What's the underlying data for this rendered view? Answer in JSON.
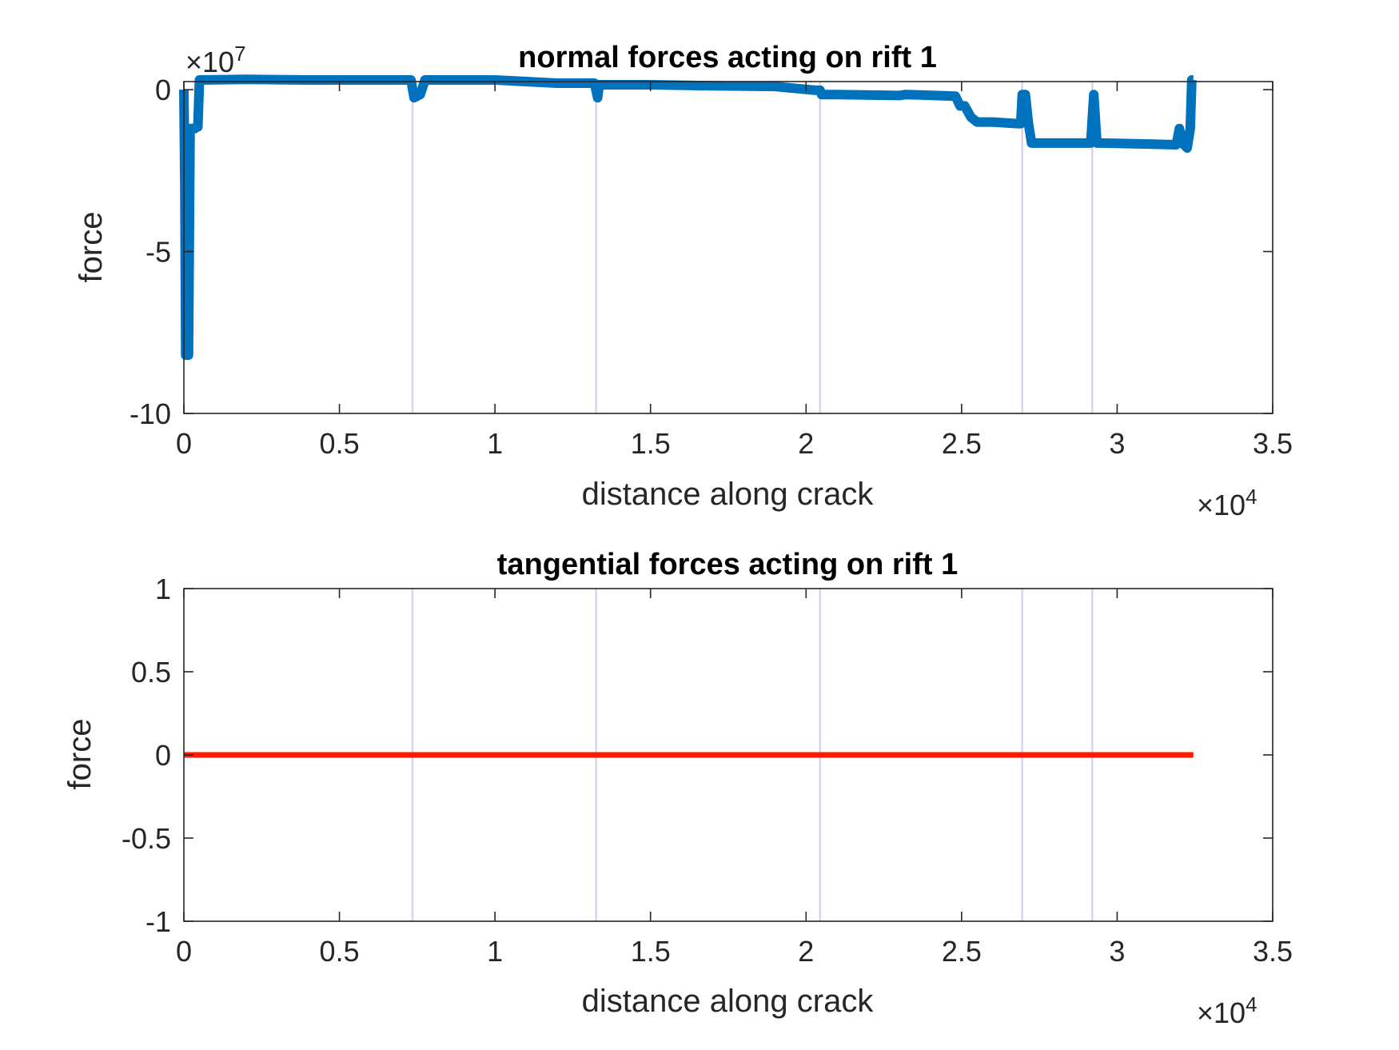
{
  "chart_data": [
    {
      "type": "line",
      "title": "normal forces acting on rift 1",
      "xlabel": "distance along crack",
      "ylabel": "force",
      "xlim": [
        0,
        35000
      ],
      "ylim": [
        -100000000,
        2500000
      ],
      "x_exponent_label": "×10",
      "x_exponent_power": "4",
      "y_exponent_label": "×10",
      "y_exponent_power": "7",
      "x_ticks": [
        0,
        5000,
        10000,
        15000,
        20000,
        25000,
        30000,
        35000
      ],
      "x_tick_labels": [
        "0",
        "0.5",
        "1",
        "1.5",
        "2",
        "2.5",
        "3",
        "3.5"
      ],
      "y_ticks": [
        -100000000,
        -50000000,
        0
      ],
      "y_tick_labels": [
        "-10",
        "-5",
        "0"
      ],
      "grid": false,
      "vertical_lines_x": [
        7350,
        13250,
        20450,
        26950,
        29200
      ],
      "series": [
        {
          "color": "#0072bd",
          "x": [
            0,
            30,
            60,
            90,
            150,
            200,
            260,
            300,
            350,
            400,
            450,
            500,
            560,
            600,
            2000,
            4000,
            6000,
            7000,
            7300,
            7400,
            7600,
            7750,
            7800,
            8000,
            10000,
            12000,
            13200,
            13300,
            13350,
            13400,
            15000,
            17000,
            19000,
            20300,
            20450,
            20500,
            21000,
            23000,
            23200,
            24800,
            24950,
            25100,
            25300,
            25500,
            26000,
            26800,
            26900,
            26950,
            27050,
            27150,
            27250,
            27300,
            28000,
            29000,
            29150,
            29250,
            29350,
            29500,
            31000,
            31900,
            32000,
            32100,
            32250,
            32350,
            32400,
            32450
          ],
          "y": [
            0,
            -30000000,
            -82000000,
            -82000000,
            -82000000,
            -12000000,
            -12000000,
            -12000000,
            -12000000,
            -11500000,
            -11500000,
            3000000,
            3000000,
            3000000,
            3200000,
            3000000,
            3000000,
            3000000,
            3000000,
            -2500000,
            -1500000,
            3000000,
            3000000,
            3000000,
            3000000,
            2000000,
            2000000,
            -2500000,
            1500000,
            1500000,
            1500000,
            1200000,
            1000000,
            -200000,
            -200000,
            -1500000,
            -1500000,
            -1800000,
            -1500000,
            -2000000,
            -5000000,
            -5000000,
            -8500000,
            -10000000,
            -10000000,
            -10500000,
            -10500000,
            -1500000,
            -1500000,
            -10500000,
            -16500000,
            -16500000,
            -16500000,
            -16500000,
            -16500000,
            -1500000,
            -16500000,
            -16500000,
            -16800000,
            -17000000,
            -12000000,
            -16500000,
            -18000000,
            -12000000,
            3000000,
            3000000
          ]
        }
      ]
    },
    {
      "type": "line",
      "title": "tangential forces acting on rift 1",
      "xlabel": "distance along crack",
      "ylabel": "force",
      "xlim": [
        0,
        35000
      ],
      "ylim": [
        -1,
        1
      ],
      "x_exponent_label": "×10",
      "x_exponent_power": "4",
      "x_ticks": [
        0,
        5000,
        10000,
        15000,
        20000,
        25000,
        30000,
        35000
      ],
      "x_tick_labels": [
        "0",
        "0.5",
        "1",
        "1.5",
        "2",
        "2.5",
        "3",
        "3.5"
      ],
      "y_ticks": [
        -1,
        -0.5,
        0,
        0.5,
        1
      ],
      "y_tick_labels": [
        "-1",
        "-0.5",
        "0",
        "0.5",
        "1"
      ],
      "grid": false,
      "vertical_lines_x": [
        7350,
        13250,
        20450,
        26950,
        29200
      ],
      "series": [
        {
          "color": "#ff1a00",
          "x": [
            0,
            32450
          ],
          "y": [
            0,
            0
          ]
        }
      ]
    }
  ]
}
